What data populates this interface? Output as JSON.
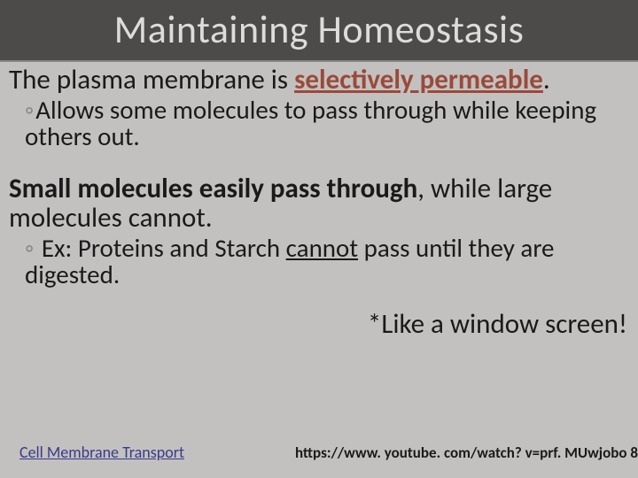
{
  "colors": {
    "page_bg": "#c3c1c0",
    "header_bg": "#4d4b4a",
    "header_border": "#888685",
    "title_text": "#dedcdb",
    "body_text": "#1a1a1a",
    "keyword": "#9a4a3a",
    "sub_marker": "#8a8887",
    "link": "#3a3a8a"
  },
  "typography": {
    "title_fontsize": 44,
    "body_fontsize": 31,
    "sub_fontsize": 29,
    "link_fontsize": 18,
    "url_fontsize": 17,
    "font_family": "Calibri"
  },
  "header": {
    "title": "Maintaining Homeostasis"
  },
  "body": {
    "p1_prefix": "The plasma membrane is ",
    "p1_keyword": "selectively permeable",
    "p1_suffix": ".",
    "sub1_marker": "◦",
    "sub1_text": "Allows some molecules to pass through while keeping others out.",
    "p2_bold": "Small molecules easily pass through",
    "p2_rest": ", while large molecules cannot.",
    "sub2_marker": "◦",
    "sub2_prefix": " Ex: Proteins and Starch ",
    "sub2_underlined": "cannot",
    "sub2_suffix": " pass until they are digested.",
    "tagline": "*Like a window screen!"
  },
  "footer": {
    "link_text": "Cell Membrane Transport",
    "url_text": "https://www. youtube. com/watch? v=prf. MUwjobo 8"
  }
}
